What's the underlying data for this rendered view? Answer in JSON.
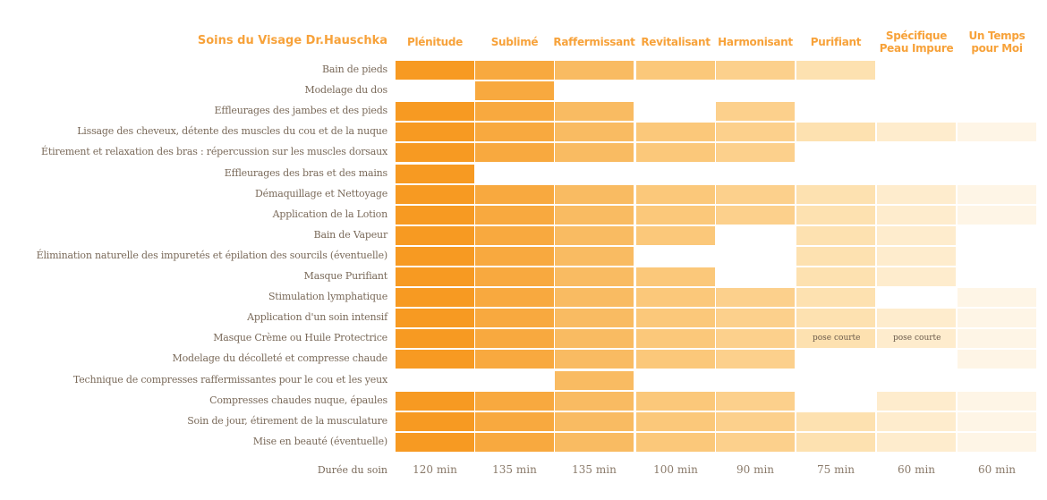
{
  "header": {
    "title": "Soins du Visage Dr.Hauschka"
  },
  "columns": [
    {
      "label": "Plénitude",
      "color": "#f79a22"
    },
    {
      "label": "Sublimé",
      "color": "#f8a93f"
    },
    {
      "label": "Raffermissant",
      "color": "#f9bb62"
    },
    {
      "label": "Revitalisant",
      "color": "#fbc87a"
    },
    {
      "label": "Harmonisant",
      "color": "#fcd08c"
    },
    {
      "label": "Purifiant",
      "color": "#fde1b0"
    },
    {
      "label": "Spécifique Peau Impure",
      "color": "#feeccd"
    },
    {
      "label": "Un Temps pour Moi",
      "color": "#fef5e6"
    }
  ],
  "rows": [
    {
      "label": "Bain de pieds",
      "cells": [
        1,
        1,
        1,
        1,
        1,
        1,
        0,
        0
      ]
    },
    {
      "label": "Modelage du dos",
      "cells": [
        0,
        1,
        0,
        0,
        0,
        0,
        0,
        0
      ]
    },
    {
      "label": "Effleurages des jambes et des pieds",
      "cells": [
        1,
        1,
        1,
        0,
        1,
        0,
        0,
        0
      ]
    },
    {
      "label": "Lissage des cheveux, détente des muscles du cou et de la nuque",
      "cells": [
        1,
        1,
        1,
        1,
        1,
        1,
        1,
        1
      ]
    },
    {
      "label": "Étirement et relaxation des bras : répercussion sur les muscles dorsaux",
      "cells": [
        1,
        1,
        1,
        1,
        1,
        0,
        0,
        0
      ]
    },
    {
      "label": "Effleurages des bras et des mains",
      "cells": [
        1,
        0,
        0,
        0,
        0,
        0,
        0,
        0
      ]
    },
    {
      "label": "Démaquillage et Nettoyage",
      "cells": [
        1,
        1,
        1,
        1,
        1,
        1,
        1,
        1
      ]
    },
    {
      "label": "Application de la Lotion",
      "cells": [
        1,
        1,
        1,
        1,
        1,
        1,
        1,
        1
      ]
    },
    {
      "label": "Bain de Vapeur",
      "cells": [
        1,
        1,
        1,
        1,
        0,
        1,
        1,
        0
      ]
    },
    {
      "label": "Élimination naturelle des impuretés et épilation des sourcils (éventuelle)",
      "cells": [
        1,
        1,
        1,
        0,
        0,
        1,
        1,
        0
      ]
    },
    {
      "label": "Masque Purifiant",
      "cells": [
        1,
        1,
        1,
        1,
        0,
        1,
        1,
        0
      ]
    },
    {
      "label": "Stimulation lymphatique",
      "cells": [
        1,
        1,
        1,
        1,
        1,
        1,
        0,
        1
      ]
    },
    {
      "label": "Application d'un soin intensif",
      "cells": [
        1,
        1,
        1,
        1,
        1,
        1,
        1,
        1
      ]
    },
    {
      "label": "Masque Crème ou Huile Protectrice",
      "cells": [
        1,
        1,
        1,
        1,
        1,
        1,
        1,
        1
      ]
    },
    {
      "label": "Modelage du décolleté et compresse chaude",
      "cells": [
        1,
        1,
        1,
        1,
        1,
        0,
        0,
        1
      ]
    },
    {
      "label": "Technique de compresses raffermissantes pour le cou et les yeux",
      "cells": [
        0,
        0,
        1,
        0,
        0,
        0,
        0,
        0
      ]
    },
    {
      "label": "Compresses chaudes nuque, épaules",
      "cells": [
        1,
        1,
        1,
        1,
        1,
        0,
        1,
        1
      ]
    },
    {
      "label": "Soin de jour, étirement de la musculature",
      "cells": [
        1,
        1,
        1,
        1,
        1,
        1,
        1,
        1
      ]
    },
    {
      "label": "Mise en beauté (éventuelle)",
      "cells": [
        1,
        1,
        1,
        1,
        1,
        1,
        1,
        1
      ]
    }
  ],
  "notes": [
    {
      "row": 13,
      "col": 5,
      "text": "pose courte"
    },
    {
      "row": 13,
      "col": 6,
      "text": "pose courte"
    }
  ],
  "footer": {
    "label": "Durée du soin",
    "durations": [
      "120 min",
      "135 min",
      "135 min",
      "100 min",
      "90 min",
      "75 min",
      "60 min",
      "60 min"
    ]
  }
}
